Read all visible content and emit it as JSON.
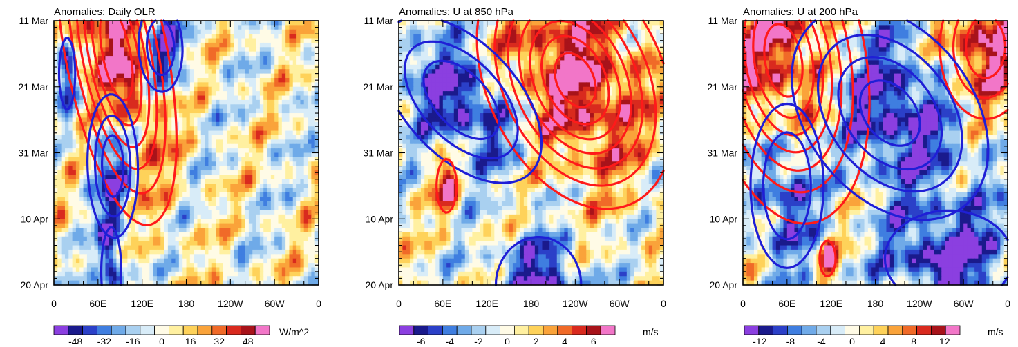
{
  "chart_data": [
    {
      "type": "heatmap",
      "title": "Anomalies: Daily OLR",
      "x_tick_labels": [
        "0",
        "60E",
        "120E",
        "180",
        "120W",
        "60W",
        "0"
      ],
      "x_tick_lons": [
        0,
        60,
        120,
        180,
        240,
        300,
        360
      ],
      "xlim": [
        0,
        360
      ],
      "y_tick_labels": [
        "11 Mar",
        "21 Mar",
        "31 Mar",
        "10 Apr",
        "20 Apr"
      ],
      "y_tick_days": [
        0,
        10,
        20,
        30,
        40
      ],
      "ylim_days": [
        0,
        40
      ],
      "colorbar": {
        "units": "W/m^2",
        "labels": [
          "-48",
          "-32",
          "-16",
          "0",
          "16",
          "32",
          "48"
        ],
        "label_values": [
          -48,
          -32,
          -16,
          0,
          16,
          32,
          48
        ],
        "range": [
          -60,
          60
        ],
        "n_boxes": 15
      },
      "field": {
        "amp": 48,
        "seed": 3,
        "bias": 0.0
      },
      "contours": [
        {
          "color": "red",
          "lon0": 85,
          "day0": 5,
          "slope": 1.6,
          "sx": 38,
          "sy": 14,
          "levels": [
            0.18,
            0.32,
            0.46,
            0.6,
            0.74,
            0.88
          ]
        },
        {
          "color": "blue",
          "lon0": 80,
          "day0": 22,
          "slope": 0.2,
          "sx": 22,
          "sy": 7,
          "levels": [
            0.3,
            0.55,
            0.8
          ]
        },
        {
          "color": "blue",
          "lon0": 18,
          "day0": 8,
          "slope": 0,
          "sx": 8,
          "sy": 4,
          "levels": [
            0.4
          ]
        },
        {
          "color": "blue",
          "lon0": 145,
          "day0": 4,
          "slope": 0.3,
          "sx": 22,
          "sy": 5,
          "levels": [
            0.4,
            0.7
          ]
        },
        {
          "color": "blue",
          "lon0": 78,
          "day0": 38,
          "slope": 0,
          "sx": 10,
          "sy": 5,
          "levels": [
            0.4
          ]
        }
      ]
    },
    {
      "type": "heatmap",
      "title": "Anomalies: U at 850 hPa",
      "x_tick_labels": [
        "0",
        "60E",
        "120E",
        "180",
        "120W",
        "60W",
        "0"
      ],
      "x_tick_lons": [
        0,
        60,
        120,
        180,
        240,
        300,
        360
      ],
      "xlim": [
        0,
        360
      ],
      "y_tick_labels": [
        "11 Mar",
        "21 Mar",
        "31 Mar",
        "10 Apr",
        "20 Apr"
      ],
      "y_tick_days": [
        0,
        10,
        20,
        30,
        40
      ],
      "ylim_days": [
        0,
        40
      ],
      "colorbar": {
        "units": "m/s",
        "labels": [
          "-6",
          "-4",
          "-2",
          "0",
          "2",
          "4",
          "6"
        ],
        "label_values": [
          -6,
          -4,
          -2,
          0,
          2,
          4,
          6
        ],
        "range": [
          -7.5,
          7.5
        ],
        "n_boxes": 15
      },
      "field": {
        "amp": 6,
        "seed": 11,
        "bias": 0.0
      },
      "contours": [
        {
          "color": "red",
          "lon0": 240,
          "day0": 9,
          "slope": 2.2,
          "sx": 65,
          "sy": 10,
          "levels": [
            0.15,
            0.28,
            0.41,
            0.54,
            0.67,
            0.8,
            0.92
          ]
        },
        {
          "color": "blue",
          "lon0": 85,
          "day0": 12,
          "slope": 4.5,
          "sx": 52,
          "sy": 7,
          "levels": [
            0.2,
            0.45,
            0.7
          ]
        },
        {
          "color": "blue",
          "lon0": 190,
          "day0": 40,
          "slope": 0,
          "sx": 40,
          "sy": 5,
          "levels": [
            0.35
          ]
        },
        {
          "color": "red",
          "lon0": 65,
          "day0": 25,
          "slope": 0,
          "sx": 10,
          "sy": 3,
          "levels": [
            0.4
          ]
        }
      ]
    },
    {
      "type": "heatmap",
      "title": "Anomalies: U at 200 hPa",
      "x_tick_labels": [
        "0",
        "60E",
        "120E",
        "180",
        "120W",
        "60W",
        "0"
      ],
      "x_tick_lons": [
        0,
        60,
        120,
        180,
        240,
        300,
        360
      ],
      "xlim": [
        0,
        360
      ],
      "y_tick_labels": [
        "11 Mar",
        "21 Mar",
        "31 Mar",
        "10 Apr",
        "20 Apr"
      ],
      "y_tick_days": [
        0,
        10,
        20,
        30,
        40
      ],
      "ylim_days": [
        0,
        40
      ],
      "colorbar": {
        "units": "m/s",
        "labels": [
          "-12",
          "-8",
          "-4",
          "0",
          "4",
          "8",
          "12"
        ],
        "label_values": [
          -12,
          -8,
          -4,
          0,
          4,
          8,
          12
        ],
        "range": [
          -14,
          14
        ],
        "n_boxes": 15
      },
      "field": {
        "amp": 12,
        "seed": 23,
        "bias": 0.0
      },
      "contours": [
        {
          "color": "red",
          "lon0": 55,
          "day0": 6,
          "slope": 1.2,
          "sx": 55,
          "sy": 12,
          "levels": [
            0.12,
            0.25,
            0.38,
            0.51,
            0.64,
            0.77,
            0.9
          ]
        },
        {
          "color": "red",
          "lon0": 330,
          "day0": 4,
          "slope": 0,
          "sx": 40,
          "sy": 7,
          "levels": [
            0.3,
            0.55,
            0.8
          ]
        },
        {
          "color": "blue",
          "lon0": 200,
          "day0": 14,
          "slope": 2.8,
          "sx": 70,
          "sy": 9,
          "levels": [
            0.2,
            0.42,
            0.64,
            0.86
          ]
        },
        {
          "color": "blue",
          "lon0": 60,
          "day0": 25,
          "slope": 0,
          "sx": 32,
          "sy": 8,
          "levels": [
            0.3,
            0.6
          ]
        },
        {
          "color": "blue",
          "lon0": 280,
          "day0": 36,
          "slope": 0,
          "sx": 60,
          "sy": 5,
          "levels": [
            0.35
          ]
        },
        {
          "color": "red",
          "lon0": 115,
          "day0": 36,
          "slope": 0,
          "sx": 8,
          "sy": 2,
          "levels": [
            0.4
          ]
        }
      ]
    }
  ]
}
